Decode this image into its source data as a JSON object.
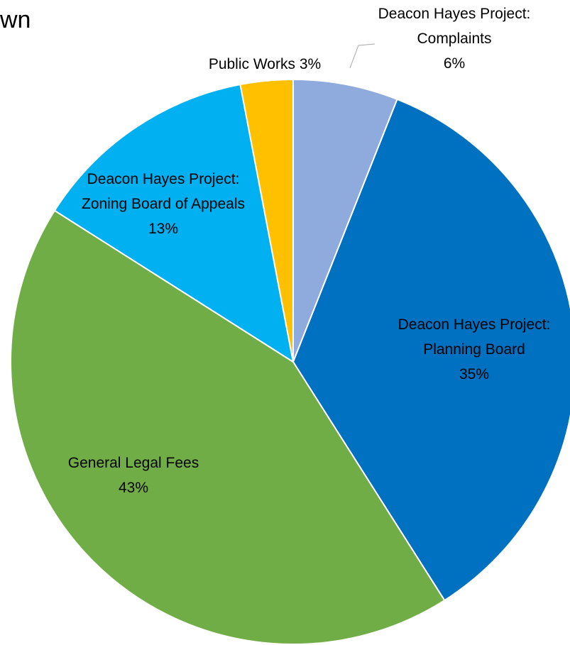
{
  "chart_data": {
    "type": "pie",
    "title": "wn",
    "categories": [
      "Deacon Hayes Project: Complaints",
      "Deacon Hayes Project: Planning Board",
      "General Legal Fees",
      "Deacon Hayes Project: Zoning Board of Appeals",
      "Public Works"
    ],
    "values": [
      6,
      35,
      43,
      13,
      3
    ],
    "value_labels": [
      "6%",
      "35%",
      "43%",
      "13%",
      "3%"
    ],
    "colors": [
      "#8faadc",
      "#0070c0",
      "#70ad47",
      "#00b0f0",
      "#ffc000"
    ]
  }
}
